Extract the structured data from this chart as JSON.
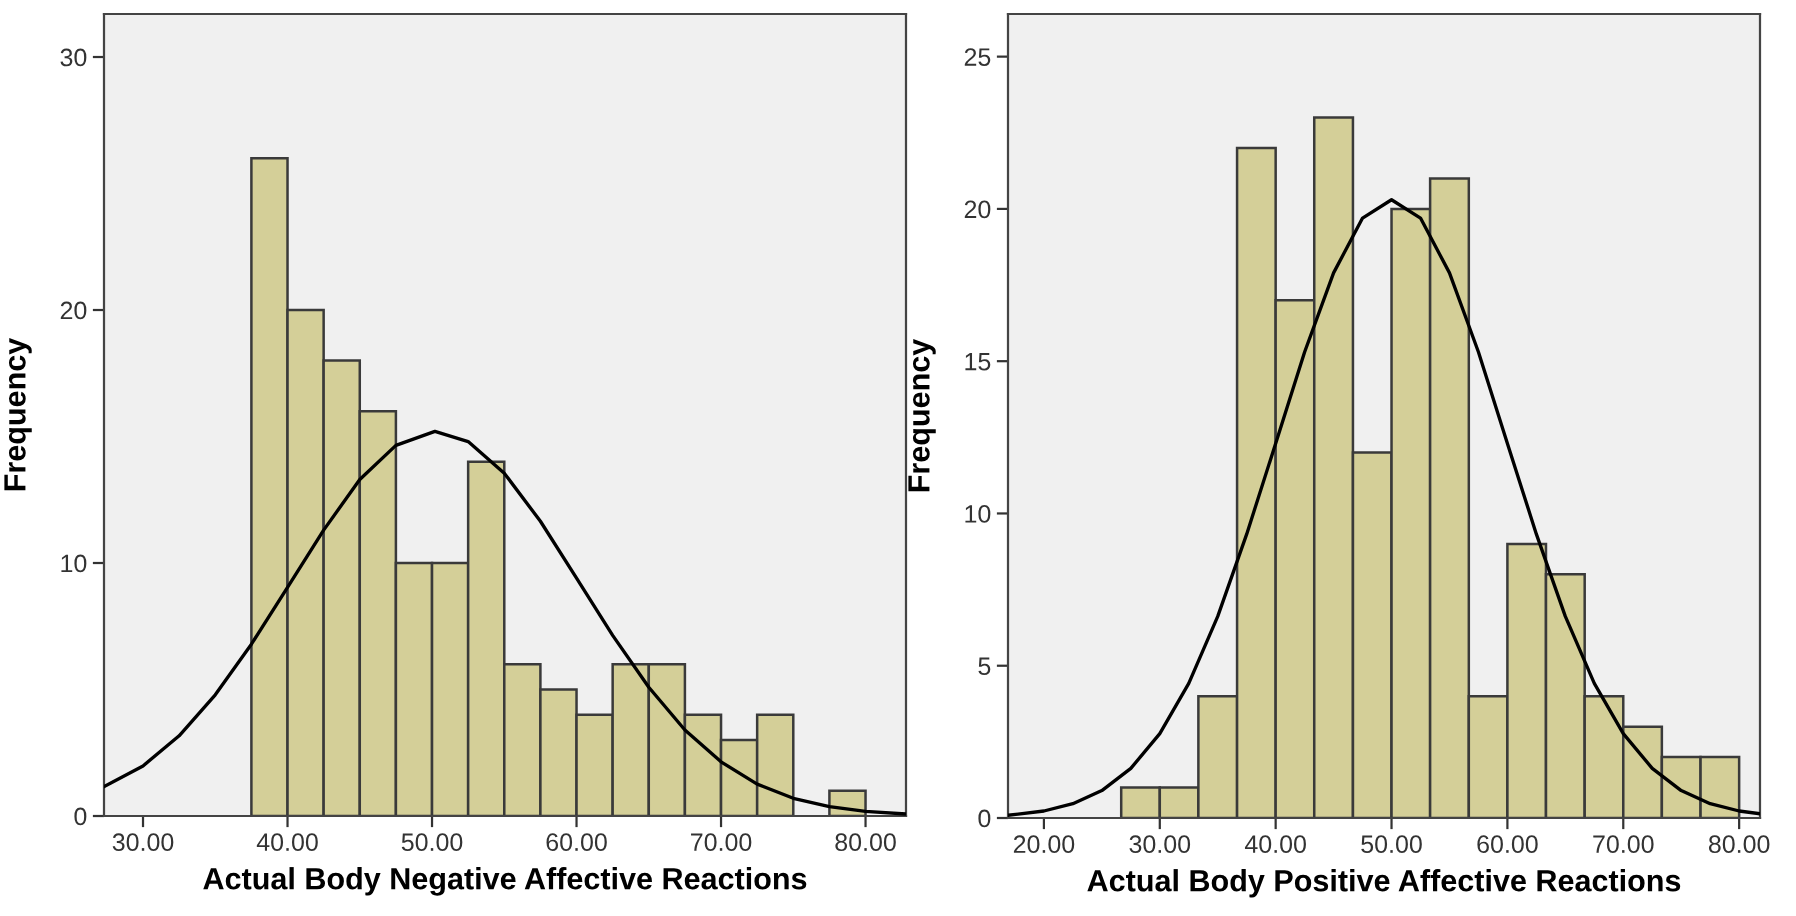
{
  "chart_data": [
    {
      "type": "histogram",
      "xlabel": "Actual Body Negative Affective Reactions",
      "ylabel": "Frequency",
      "xlim": [
        27.3,
        82.8
      ],
      "ylim": [
        0,
        31.7
      ],
      "xticks": [
        {
          "value": 30,
          "label": "30.00"
        },
        {
          "value": 40,
          "label": "40.00"
        },
        {
          "value": 50,
          "label": "50.00"
        },
        {
          "value": 60,
          "label": "60.00"
        },
        {
          "value": 70,
          "label": "70.00"
        },
        {
          "value": 80,
          "label": "80.00"
        }
      ],
      "yticks": [
        0,
        10,
        20,
        30
      ],
      "series": [
        {
          "color": "#d4cf98",
          "bins": [
            37.5,
            40,
            42.5,
            45,
            47.5,
            50,
            52.5,
            55,
            57.5,
            60,
            62.5,
            65,
            67.5,
            70,
            72.5,
            75,
            77.5,
            80
          ],
          "values": [
            26,
            20,
            18,
            16,
            10,
            10,
            14,
            6,
            5,
            4,
            6,
            6,
            4,
            3,
            4,
            0,
            1
          ]
        },
        {
          "type": "line",
          "color": "#000000",
          "x": [
            27.3,
            30,
            32.5,
            35,
            37.5,
            40,
            42.5,
            45,
            47.5,
            50.2,
            52.5,
            55,
            57.5,
            60,
            62.5,
            65,
            67.5,
            70,
            72.5,
            75,
            77.5,
            80,
            82.8
          ],
          "values": [
            1.16,
            1.98,
            3.17,
            4.79,
            6.79,
            9.04,
            11.3,
            13.3,
            14.65,
            15.2,
            14.8,
            13.55,
            11.65,
            9.4,
            7.14,
            5.09,
            3.4,
            2.14,
            1.26,
            0.7,
            0.37,
            0.18,
            0.08
          ]
        }
      ]
    },
    {
      "type": "histogram",
      "xlabel": "Actual Body Positive Affective Reactions",
      "ylabel": "Frequency",
      "xlim": [
        16.9,
        81.8
      ],
      "ylim": [
        0,
        26.4
      ],
      "xticks": [
        {
          "value": 20,
          "label": "20.00"
        },
        {
          "value": 30,
          "label": "30.00"
        },
        {
          "value": 40,
          "label": "40.00"
        },
        {
          "value": 50,
          "label": "50.00"
        },
        {
          "value": 60,
          "label": "60.00"
        },
        {
          "value": 70,
          "label": "70.00"
        },
        {
          "value": 80,
          "label": "80.00"
        }
      ],
      "yticks": [
        0,
        5,
        10,
        15,
        20,
        25
      ],
      "series": [
        {
          "color": "#d4cf98",
          "bins": [
            26.67,
            30,
            33.33,
            36.67,
            40,
            43.33,
            46.67,
            50,
            53.33,
            56.67,
            60,
            63.33,
            66.67,
            70,
            73.33,
            76.67,
            80
          ],
          "values": [
            1,
            1,
            4,
            22,
            17,
            23,
            12,
            20,
            21,
            4,
            9,
            8,
            4,
            3,
            2,
            2
          ]
        },
        {
          "type": "line",
          "color": "#000000",
          "x": [
            16.9,
            20,
            22.5,
            25,
            27.5,
            30,
            32.5,
            35,
            37.5,
            40,
            42.5,
            45,
            47.5,
            50,
            52.5,
            55,
            57.5,
            60,
            62.5,
            65,
            67.5,
            70,
            72.5,
            75,
            77.5,
            80,
            81.8
          ],
          "values": [
            0.09,
            0.23,
            0.47,
            0.9,
            1.63,
            2.77,
            4.42,
            6.62,
            9.32,
            12.3,
            15.3,
            17.9,
            19.7,
            20.3,
            19.7,
            17.9,
            15.3,
            12.3,
            9.32,
            6.62,
            4.42,
            2.77,
            1.63,
            0.9,
            0.47,
            0.23,
            0.14
          ]
        }
      ]
    }
  ]
}
